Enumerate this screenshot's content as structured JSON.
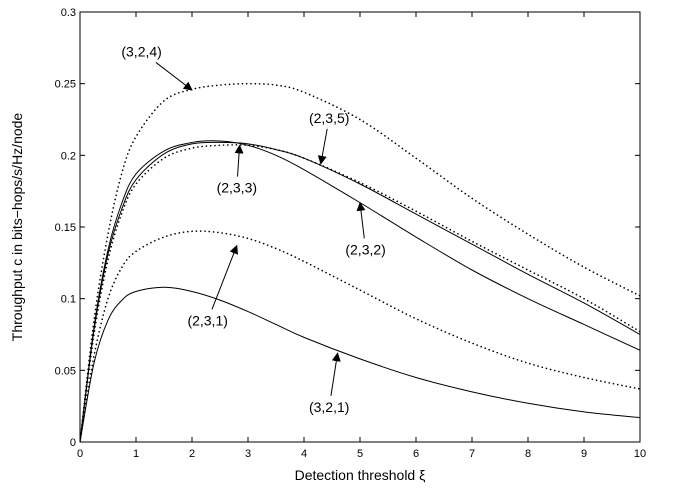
{
  "chart_data": {
    "type": "line",
    "title": "",
    "xlabel": "Detection threshold ξ",
    "ylabel": "Throughput c in bits−hops/s/Hz/node",
    "xlim": [
      0,
      10
    ],
    "ylim": [
      0,
      0.3
    ],
    "xticks": [
      0,
      1,
      2,
      3,
      4,
      5,
      6,
      7,
      8,
      9,
      10
    ],
    "yticks": [
      0,
      0.05,
      0.1,
      0.15,
      0.2,
      0.25,
      0.3
    ],
    "xtick_labels": [
      "0",
      "1",
      "2",
      "3",
      "4",
      "5",
      "6",
      "7",
      "8",
      "9",
      "10"
    ],
    "ytick_labels": [
      "0",
      "0.05",
      "0.1",
      "0.15",
      "0.2",
      "0.25",
      "0.3"
    ],
    "grid": false,
    "x": [
      0,
      0.25,
      0.5,
      0.75,
      1,
      1.5,
      2,
      2.5,
      3,
      3.5,
      4,
      5,
      6,
      7,
      8,
      9,
      10
    ],
    "series": [
      {
        "name": "",
        "style": "dotted",
        "values": [
          0,
          0.085,
          0.145,
          0.188,
          0.213,
          0.238,
          0.246,
          0.249,
          0.25,
          0.249,
          0.244,
          0.225,
          0.198,
          0.17,
          0.145,
          0.122,
          0.102
        ]
      },
      {
        "name": "",
        "style": "dotted",
        "values": [
          0,
          0.06,
          0.1,
          0.122,
          0.133,
          0.143,
          0.147,
          0.146,
          0.142,
          0.135,
          0.126,
          0.106,
          0.086,
          0.069,
          0.055,
          0.045,
          0.037
        ]
      },
      {
        "name": "",
        "style": "dotted",
        "values": [
          0,
          0.075,
          0.127,
          0.16,
          0.18,
          0.198,
          0.205,
          0.207,
          0.207,
          0.204,
          0.198,
          0.181,
          0.161,
          0.14,
          0.12,
          0.1,
          0.077
        ]
      },
      {
        "name": "",
        "style": "solid",
        "values": [
          0,
          0.078,
          0.131,
          0.163,
          0.183,
          0.201,
          0.208,
          0.209,
          0.208,
          0.204,
          0.198,
          0.18,
          0.159,
          0.138,
          0.117,
          0.097,
          0.075
        ]
      },
      {
        "name": "",
        "style": "solid",
        "values": [
          0,
          0.08,
          0.134,
          0.167,
          0.187,
          0.203,
          0.209,
          0.21,
          0.207,
          0.2,
          0.19,
          0.167,
          0.143,
          0.12,
          0.1,
          0.082,
          0.064
        ]
      },
      {
        "name": "",
        "style": "solid",
        "values": [
          0,
          0.055,
          0.085,
          0.099,
          0.105,
          0.108,
          0.105,
          0.099,
          0.091,
          0.082,
          0.073,
          0.058,
          0.045,
          0.035,
          0.027,
          0.021,
          0.017
        ]
      }
    ],
    "annotations": [
      {
        "text": "(3,2,4)",
        "xy": [
          2.0,
          0.2455
        ],
        "xytext": [
          1.1,
          0.2725
        ]
      },
      {
        "text": "(2,3,5)",
        "xy": [
          4.3,
          0.194
        ],
        "xytext": [
          4.45,
          0.2262
        ]
      },
      {
        "text": "(2,3,3)",
        "xy": [
          2.85,
          0.207
        ],
        "xytext": [
          2.8,
          0.1775
        ]
      },
      {
        "text": "(2,3,2)",
        "xy": [
          5.0,
          0.167
        ],
        "xytext": [
          5.1,
          0.1344
        ]
      },
      {
        "text": "(2,3,1)",
        "xy": [
          2.8,
          0.137
        ],
        "xytext": [
          2.28,
          0.0848
        ]
      },
      {
        "text": "(3,2,1)",
        "xy": [
          4.6,
          0.062
        ],
        "xytext": [
          4.45,
          0.0245
        ]
      }
    ]
  }
}
